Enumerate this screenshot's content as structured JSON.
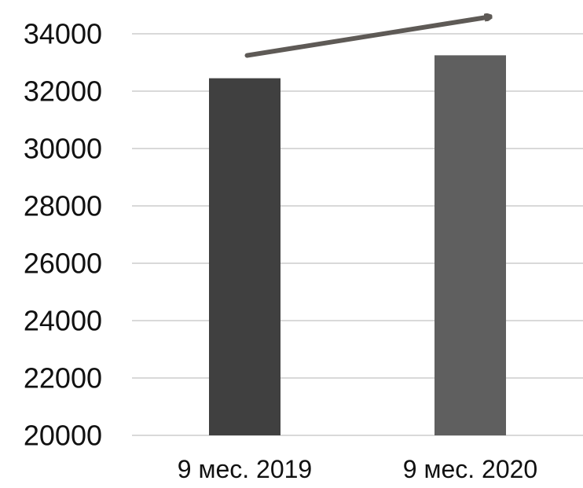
{
  "chart_data": {
    "type": "bar",
    "categories": [
      "9 мес. 2019",
      "9 мес. 2020"
    ],
    "values": [
      32450,
      33250
    ],
    "colors": [
      "#404040",
      "#5f5f5f"
    ],
    "title": "",
    "xlabel": "",
    "ylabel": "",
    "ylim": [
      20000,
      34000
    ],
    "yticks": [
      "20000",
      "22000",
      "24000",
      "26000",
      "28000",
      "30000",
      "32000",
      "34000"
    ],
    "grid": true,
    "legend": "none",
    "annotation": {
      "type": "arrow",
      "direction": "up-right",
      "color": "#5e5a56"
    }
  }
}
